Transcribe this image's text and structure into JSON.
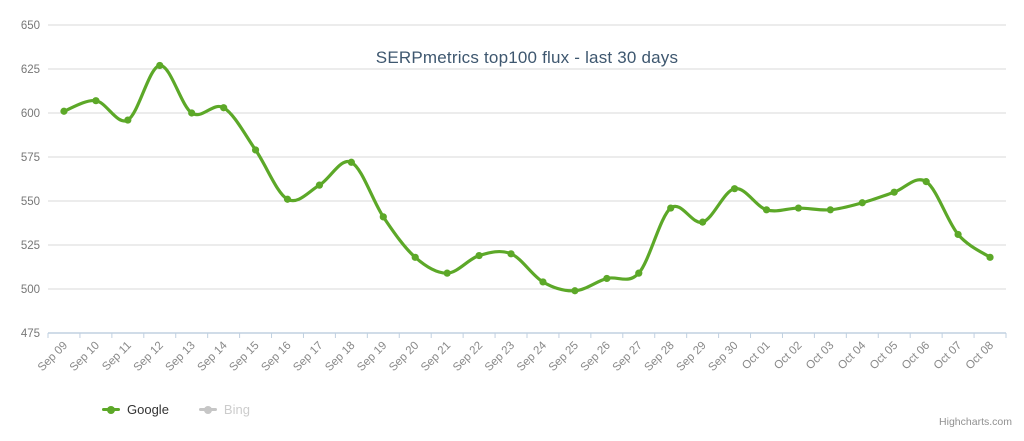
{
  "chart_data": {
    "type": "line",
    "title": "SERPmetrics top100 flux - last 30 days",
    "categories": [
      "Sep 09",
      "Sep 10",
      "Sep 11",
      "Sep 12",
      "Sep 13",
      "Sep 14",
      "Sep 15",
      "Sep 16",
      "Sep 17",
      "Sep 18",
      "Sep 19",
      "Sep 20",
      "Sep 21",
      "Sep 22",
      "Sep 23",
      "Sep 24",
      "Sep 25",
      "Sep 26",
      "Sep 27",
      "Sep 28",
      "Sep 29",
      "Sep 30",
      "Oct 01",
      "Oct 02",
      "Oct 03",
      "Oct 04",
      "Oct 05",
      "Oct 06",
      "Oct 07",
      "Oct 08"
    ],
    "series": [
      {
        "name": "Google",
        "color": "#5CA828",
        "visible": true,
        "values": [
          601,
          607,
          596,
          627,
          600,
          603,
          579,
          551,
          559,
          572,
          541,
          518,
          509,
          519,
          520,
          504,
          499,
          506,
          509,
          546,
          538,
          557,
          545,
          546,
          545,
          549,
          555,
          561,
          531,
          518
        ]
      },
      {
        "name": "Bing",
        "color": "#C6C6C6",
        "visible": false,
        "values": []
      }
    ],
    "xlabel": "",
    "ylabel": "",
    "ylim": [
      475,
      650
    ],
    "ytick_interval": 25,
    "grid": true,
    "legend_position": "bottom-left",
    "line_smoothing": "spline"
  },
  "colors": {
    "title": "#3E576F",
    "google_green": "#5CA828",
    "bing_disabled_gray": "#C6C6C6",
    "legend_active_text": "#333333",
    "legend_hidden_text": "#CCCCCC",
    "axis_line": "#C0D0E0",
    "grid_line": "#D8D8D8"
  },
  "credits": {
    "label": "Highcharts.com"
  }
}
